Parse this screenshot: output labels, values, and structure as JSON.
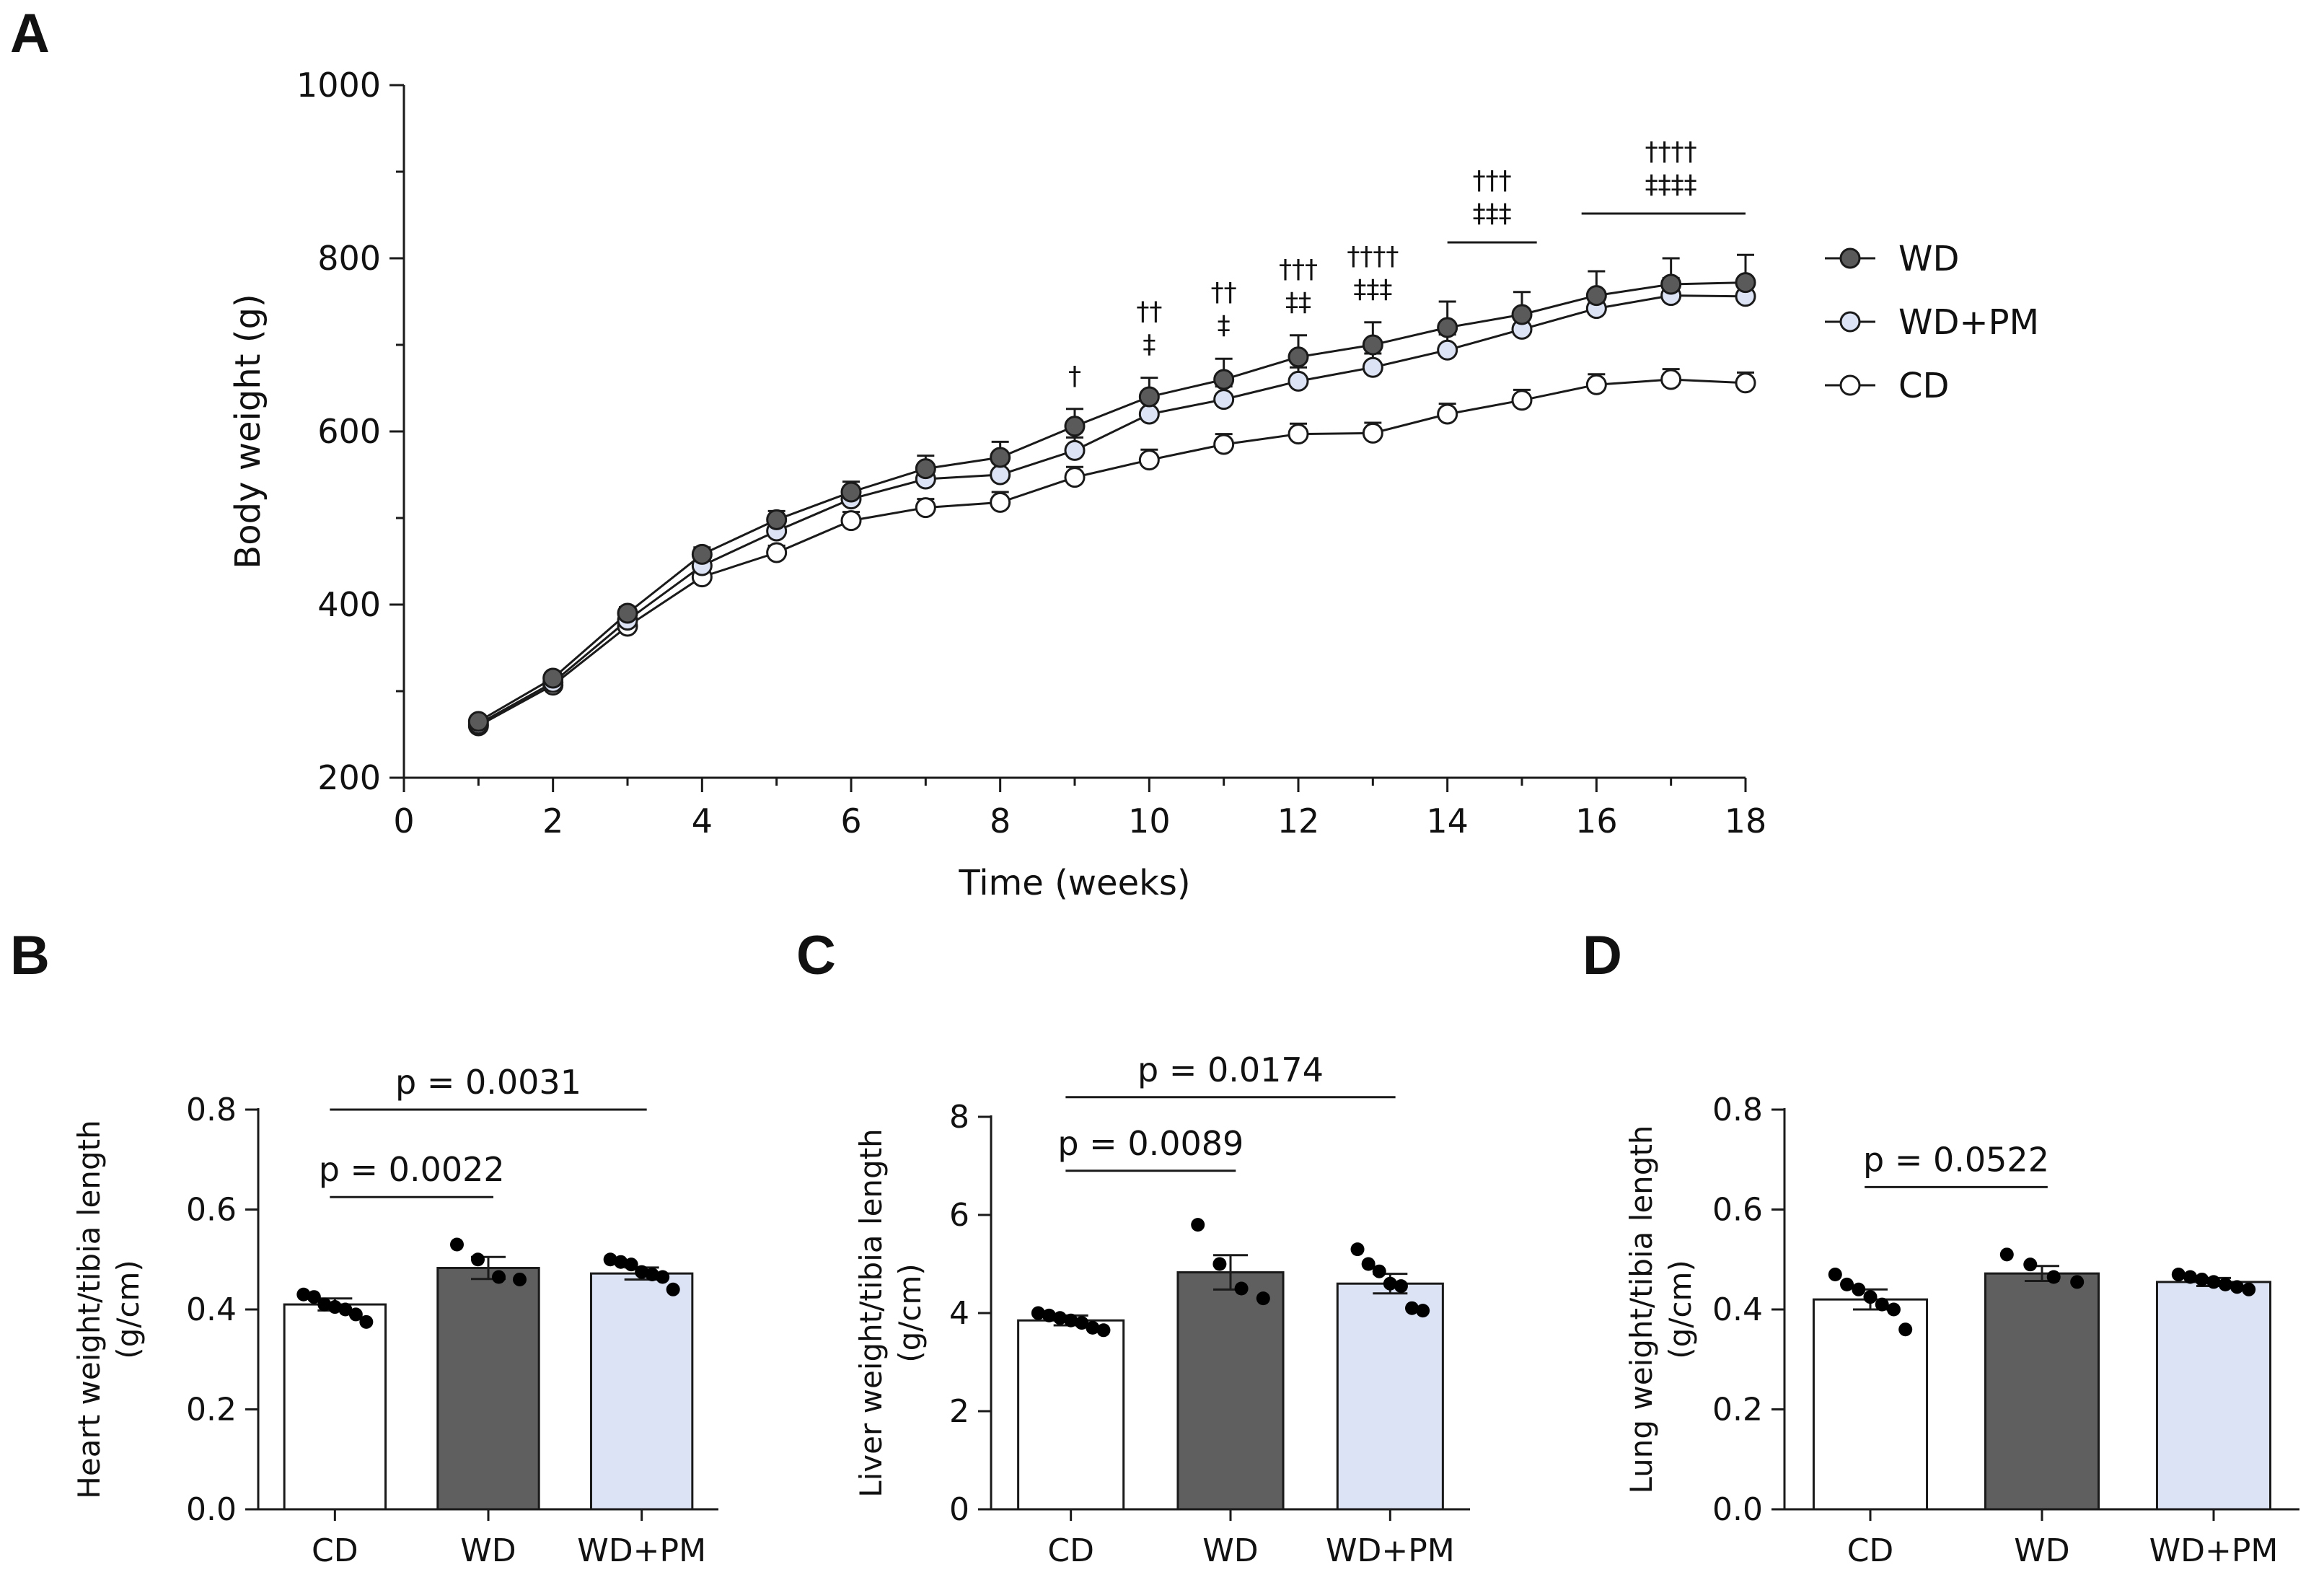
{
  "chart_data": [
    {
      "panel": "A",
      "type": "line",
      "xlabel": "Time (weeks)",
      "ylabel": "Body weight (g)",
      "xlim": [
        0,
        18
      ],
      "ylim": [
        200,
        1000
      ],
      "xticks": [
        0,
        2,
        4,
        6,
        8,
        10,
        12,
        14,
        16,
        18
      ],
      "yticks": [
        200,
        400,
        600,
        800,
        1000
      ],
      "x": [
        1,
        2,
        3,
        4,
        5,
        6,
        7,
        8,
        9,
        10,
        11,
        12,
        13,
        14,
        15,
        16,
        17,
        18
      ],
      "legend_position": "right",
      "series": [
        {
          "name": "WD",
          "color": "#5a5a5a",
          "values": [
            265,
            315,
            390,
            458,
            498,
            530,
            557,
            570,
            606,
            640,
            660,
            686,
            700,
            720,
            735,
            757,
            770,
            772
          ],
          "errors": [
            5,
            6,
            7,
            8,
            10,
            12,
            15,
            18,
            20,
            22,
            24,
            25,
            26,
            30,
            26,
            28,
            30,
            32
          ]
        },
        {
          "name": "WD+PM",
          "color": "#dce3f5",
          "values": [
            262,
            310,
            382,
            445,
            485,
            522,
            545,
            550,
            578,
            620,
            637,
            658,
            674,
            694,
            718,
            742,
            757,
            756
          ],
          "errors": [
            5,
            6,
            7,
            8,
            10,
            12,
            12,
            14,
            15,
            16,
            15,
            16,
            16,
            18,
            18,
            18,
            20,
            20
          ]
        },
        {
          "name": "CD",
          "color": "#ffffff",
          "values": [
            260,
            307,
            375,
            432,
            460,
            497,
            512,
            518,
            547,
            567,
            585,
            597,
            598,
            620,
            636,
            654,
            660,
            656
          ],
          "errors": [
            5,
            5,
            6,
            6,
            8,
            10,
            10,
            12,
            12,
            12,
            12,
            12,
            12,
            12,
            12,
            12,
            12,
            12
          ]
        }
      ],
      "annotations": [
        {
          "x": 9,
          "lines": [
            "†"
          ]
        },
        {
          "x": 10,
          "lines": [
            "††",
            "‡"
          ]
        },
        {
          "x": 11,
          "lines": [
            "††",
            "‡"
          ]
        },
        {
          "x": 12,
          "lines": [
            "†††",
            "‡‡"
          ]
        },
        {
          "x": 13,
          "lines": [
            "††††",
            "‡‡‡"
          ]
        },
        {
          "x": 14.6,
          "lines": [
            "†††",
            "‡‡‡"
          ],
          "bar_from": 14,
          "bar_to": 15.2
        },
        {
          "x": 17,
          "lines": [
            "††††",
            "‡‡‡‡"
          ],
          "bar_from": 15.8,
          "bar_to": 18
        }
      ]
    },
    {
      "panel": "B",
      "type": "bar",
      "ylabel": [
        "Heart weight/tibia length",
        "(g/cm)"
      ],
      "ylim": [
        0,
        0.8
      ],
      "yticks": [
        0.0,
        0.2,
        0.4,
        0.6,
        0.8
      ],
      "ytick_labels": [
        "0.0",
        "0.2",
        "0.4",
        "0.6",
        "0.8"
      ],
      "categories": [
        "CD",
        "WD",
        "WD+PM"
      ],
      "values": [
        0.41,
        0.483,
        0.472
      ],
      "errors": [
        0.012,
        0.022,
        0.012
      ],
      "bar_colors": [
        "#ffffff",
        "#5f5f5f",
        "#dce3f5"
      ],
      "points": [
        [
          0.43,
          0.425,
          0.41,
          0.405,
          0.4,
          0.39,
          0.375
        ],
        [
          0.53,
          0.5,
          0.465,
          0.46
        ],
        [
          0.5,
          0.495,
          0.49,
          0.475,
          0.47,
          0.465,
          0.44
        ]
      ],
      "comparisons": [
        {
          "from": 0,
          "to": 1,
          "y": 0.625,
          "label": "p = 0.0022"
        },
        {
          "from": 0,
          "to": 2,
          "y": 0.8,
          "label": "p = 0.0031"
        }
      ]
    },
    {
      "panel": "C",
      "type": "bar",
      "ylabel": [
        "Liver weight/tibia length",
        "(g/cm)"
      ],
      "ylim": [
        0,
        8
      ],
      "yticks": [
        0,
        2,
        4,
        6,
        8
      ],
      "ytick_labels": [
        "0",
        "2",
        "4",
        "6",
        "8"
      ],
      "categories": [
        "CD",
        "WD",
        "WD+PM"
      ],
      "values": [
        3.85,
        4.83,
        4.6
      ],
      "errors": [
        0.1,
        0.35,
        0.2
      ],
      "bar_colors": [
        "#ffffff",
        "#5f5f5f",
        "#dce3f5"
      ],
      "points": [
        [
          4.0,
          3.95,
          3.9,
          3.85,
          3.8,
          3.7,
          3.65
        ],
        [
          5.8,
          5.0,
          4.5,
          4.3
        ],
        [
          5.3,
          5.0,
          4.85,
          4.6,
          4.55,
          4.1,
          4.05
        ]
      ],
      "comparisons": [
        {
          "from": 0,
          "to": 1,
          "y": 6.9,
          "label": "p = 0.0089"
        },
        {
          "from": 0,
          "to": 2,
          "y": 8.4,
          "label": "p = 0.0174"
        }
      ]
    },
    {
      "panel": "D",
      "type": "bar",
      "ylabel": [
        "Lung weight/tibia length",
        "(g/cm)"
      ],
      "ylim": [
        0,
        0.8
      ],
      "yticks": [
        0.0,
        0.2,
        0.4,
        0.6,
        0.8
      ],
      "ytick_labels": [
        "0.0",
        "0.2",
        "0.4",
        "0.6",
        "0.8"
      ],
      "categories": [
        "CD",
        "WD",
        "WD+PM"
      ],
      "values": [
        0.42,
        0.472,
        0.455
      ],
      "errors": [
        0.02,
        0.015,
        0.008
      ],
      "bar_colors": [
        "#ffffff",
        "#5f5f5f",
        "#dce3f5"
      ],
      "points": [
        [
          0.47,
          0.45,
          0.44,
          0.425,
          0.41,
          0.4,
          0.36
        ],
        [
          0.51,
          0.49,
          0.465,
          0.455
        ],
        [
          0.47,
          0.465,
          0.46,
          0.455,
          0.45,
          0.445,
          0.44
        ]
      ],
      "comparisons": [
        {
          "from": 0,
          "to": 1,
          "y": 0.645,
          "label": "p = 0.0522"
        }
      ]
    }
  ]
}
